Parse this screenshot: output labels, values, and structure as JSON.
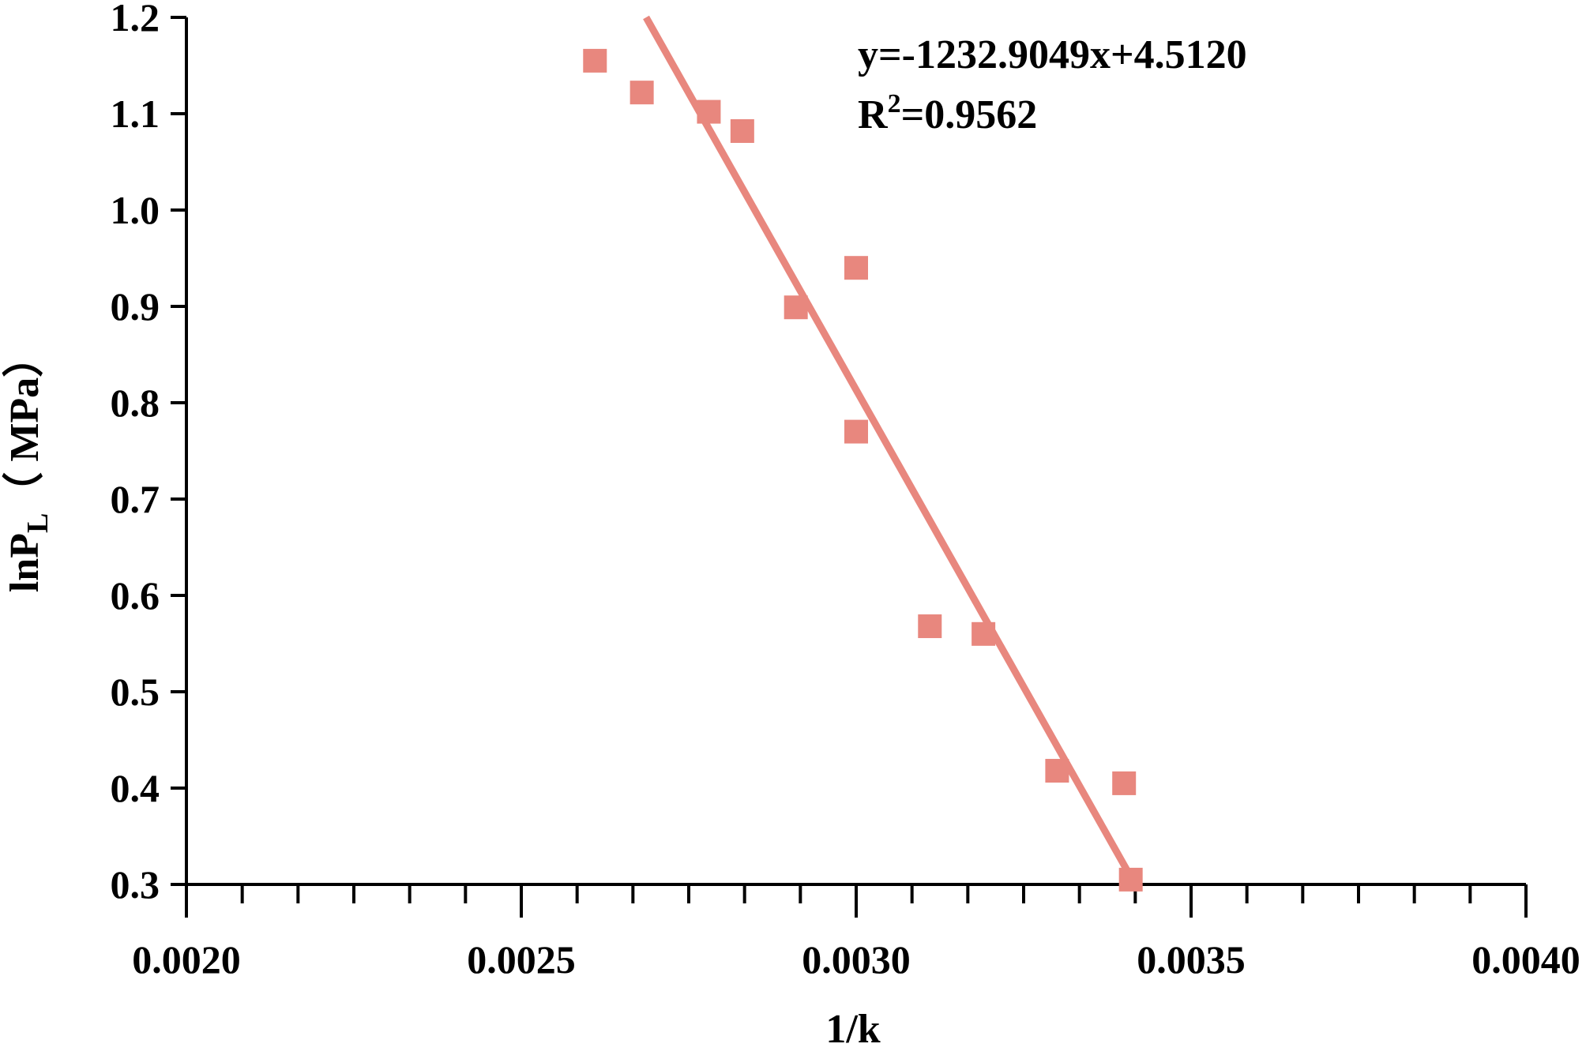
{
  "chart_data": {
    "type": "scatter",
    "title": "",
    "xlabel": "1/k",
    "ylabel_main": "lnP",
    "ylabel_sub": "L",
    "ylabel_tail": "（ MPa）",
    "xlim": [
      0.002,
      0.004
    ],
    "ylim": [
      0.3,
      1.2
    ],
    "x_ticks": [
      "0.0020",
      "0.0025",
      "0.0030",
      "0.0035",
      "0.0040"
    ],
    "y_ticks": [
      "0.3",
      "0.4",
      "0.5",
      "0.6",
      "0.7",
      "0.8",
      "0.9",
      "1.0",
      "1.1",
      "1.2"
    ],
    "grid": false,
    "colors": {
      "series": "#e8877e",
      "axis": "#000000"
    },
    "series": [
      {
        "marker": "square",
        "x": [
          0.00261,
          0.00268,
          0.00278,
          0.00283,
          0.00291,
          0.003,
          0.003,
          0.00311,
          0.00319,
          0.0033,
          0.0034,
          0.00341
        ],
        "y": [
          1.155,
          1.122,
          1.102,
          1.082,
          0.899,
          0.94,
          0.77,
          0.568,
          0.56,
          0.418,
          0.405,
          0.305
        ]
      }
    ],
    "fit": {
      "slope": -1232.9049,
      "intercept": 4.512,
      "x_range": [
        0.00268,
        0.00342
      ],
      "equation_text": "y=-1232.9049x+4.5120",
      "r2_prefix": "R",
      "r2_sup": "2",
      "r2_value": "=0.9562"
    }
  }
}
